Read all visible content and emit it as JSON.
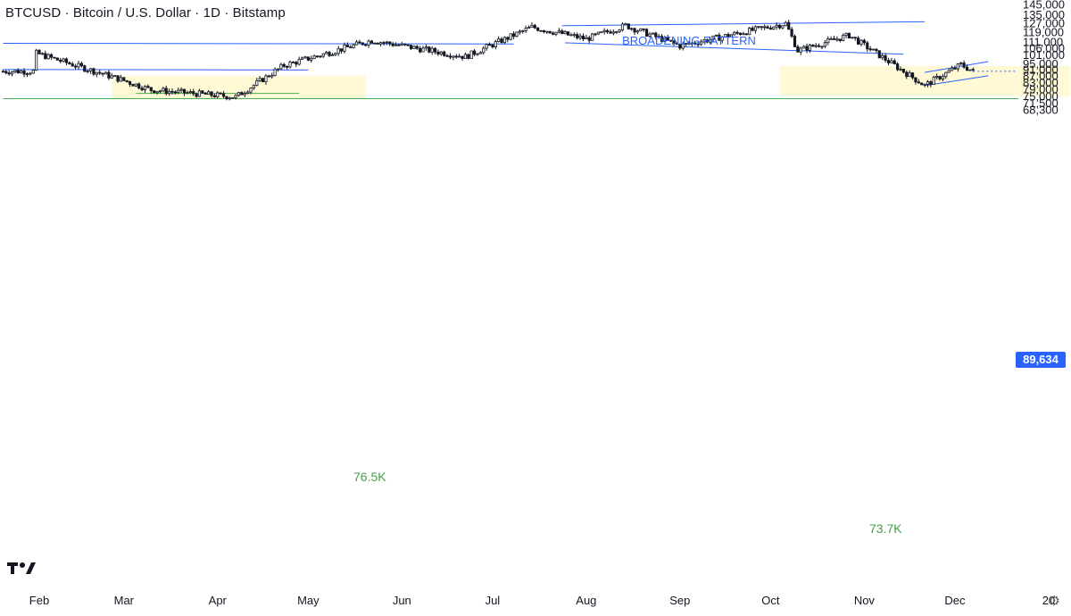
{
  "header": {
    "title": "BTCUSD · Bitcoin / U.S. Dollar · 1D · Bitstamp"
  },
  "chart_data": {
    "type": "candlestick",
    "title": "BTCUSD · Bitcoin / U.S. Dollar · 1D · Bitstamp",
    "y_ticks": [
      "145,000",
      "135,000",
      "127,000",
      "119,000",
      "111,000",
      "106,000",
      "101,000",
      "95,000",
      "91,000",
      "87,000",
      "83,000",
      "79,000",
      "75,000",
      "71,500",
      "68,300"
    ],
    "y_scale": "log",
    "ylim": [
      66500,
      147000
    ],
    "x_ticks": [
      "Feb",
      "Mar",
      "Apr",
      "May",
      "Jun",
      "Jul",
      "Aug",
      "Sep",
      "Oct",
      "Nov",
      "Dec",
      "20"
    ],
    "last_price": 89634,
    "last_price_label": "89,634",
    "annotations": {
      "pattern_label": "BROADENING PATTERN",
      "level_1_label": "76.5K",
      "level_1_value": 76500,
      "level_2_label": "73.7K",
      "level_2_value": 73700
    },
    "colors": {
      "candle": "#131722",
      "trendline": "#2962ff",
      "support": "#4caf50",
      "zone": "#fff9d6",
      "label_blue": "#2962ff",
      "label_green": "#43a047",
      "price_tag": "#2962ff"
    },
    "ohlc_keypoints": [
      {
        "date": "2025-01-31",
        "price": 102000
      },
      {
        "date": "2025-02-28",
        "price": 84500
      },
      {
        "date": "2025-03-10",
        "price": 78500
      },
      {
        "date": "2025-04-07",
        "price": 74600
      },
      {
        "date": "2025-04-23",
        "price": 93500
      },
      {
        "date": "2025-05-22",
        "price": 111800
      },
      {
        "date": "2025-06-22",
        "price": 99500
      },
      {
        "date": "2025-07-14",
        "price": 123000
      },
      {
        "date": "2025-08-01",
        "price": 113000
      },
      {
        "date": "2025-08-14",
        "price": 124400
      },
      {
        "date": "2025-09-01",
        "price": 107500
      },
      {
        "date": "2025-09-19",
        "price": 117000
      },
      {
        "date": "2025-10-06",
        "price": 126200
      },
      {
        "date": "2025-10-10",
        "price": 104000
      },
      {
        "date": "2025-10-27",
        "price": 116000
      },
      {
        "date": "2025-11-21",
        "price": 81000
      },
      {
        "date": "2025-12-03",
        "price": 94000
      },
      {
        "date": "2025-12-07",
        "price": 89634
      }
    ]
  }
}
